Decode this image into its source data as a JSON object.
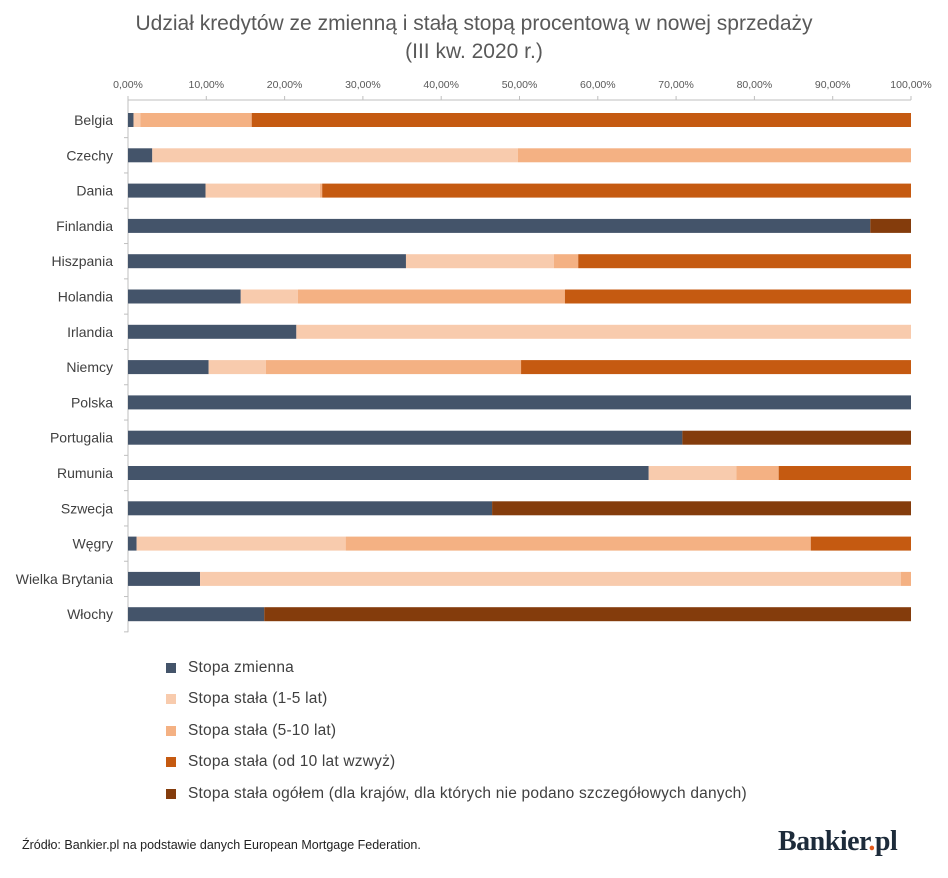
{
  "title_line1": "Udział kredytów ze zmienną i stałą stopą procentową w nowej sprzedaży",
  "title_line2": "(III kw. 2020 r.)",
  "source_text": "Źródło: Bankier.pl na podstawie danych European Mortgage Federation.",
  "logo": {
    "main": "Bankier",
    "dot": ".",
    "suffix": "pl"
  },
  "chart_data": {
    "type": "bar",
    "orientation": "horizontal",
    "stacked": true,
    "xlim": [
      0,
      100
    ],
    "x_ticks": [
      "0,00%",
      "10,00%",
      "20,00%",
      "30,00%",
      "40,00%",
      "50,00%",
      "60,00%",
      "70,00%",
      "80,00%",
      "90,00%",
      "100,00%"
    ],
    "x_axis_position": "top",
    "grid": false,
    "legend_position": "bottom",
    "categories": [
      "Belgia",
      "Czechy",
      "Dania",
      "Finlandia",
      "Hiszpania",
      "Holandia",
      "Irlandia",
      "Niemcy",
      "Polska",
      "Portugalia",
      "Rumunia",
      "Szwecja",
      "Węgry",
      "Wielka Brytania",
      "Włochy"
    ],
    "series": [
      {
        "name": "Stopa zmienna",
        "color": "#44546a",
        "values": [
          0.7,
          3.1,
          9.9,
          94.8,
          35.5,
          14.4,
          21.5,
          10.3,
          100.0,
          70.8,
          66.5,
          46.5,
          1.1,
          9.2,
          17.4
        ]
      },
      {
        "name": "Stopa stała (1-5 lat)",
        "color": "#f8cbad",
        "values": [
          0.9,
          46.7,
          14.6,
          0.0,
          18.9,
          7.3,
          78.5,
          7.3,
          0.0,
          0.0,
          11.2,
          0.0,
          26.7,
          89.5,
          0.0
        ]
      },
      {
        "name": "Stopa stała (5-10 lat)",
        "color": "#f4b183",
        "values": [
          14.2,
          50.2,
          0.3,
          0.0,
          3.1,
          34.1,
          0.0,
          32.6,
          0.0,
          0.0,
          5.4,
          0.0,
          59.4,
          1.3,
          0.0
        ]
      },
      {
        "name": "Stopa stała (od 10 lat wzwyż)",
        "color": "#c55a11",
        "values": [
          84.2,
          0.0,
          75.2,
          0.0,
          42.5,
          44.2,
          0.0,
          49.8,
          0.0,
          0.0,
          16.9,
          0.0,
          12.8,
          0.0,
          0.0
        ]
      },
      {
        "name": "Stopa stała ogółem (dla krajów, dla których nie podano szczegółowych danych)",
        "color": "#843c0c",
        "values": [
          0.0,
          0.0,
          0.0,
          5.2,
          0.0,
          0.0,
          0.0,
          0.0,
          0.0,
          29.2,
          0.0,
          53.5,
          0.0,
          0.0,
          82.6
        ]
      }
    ]
  }
}
